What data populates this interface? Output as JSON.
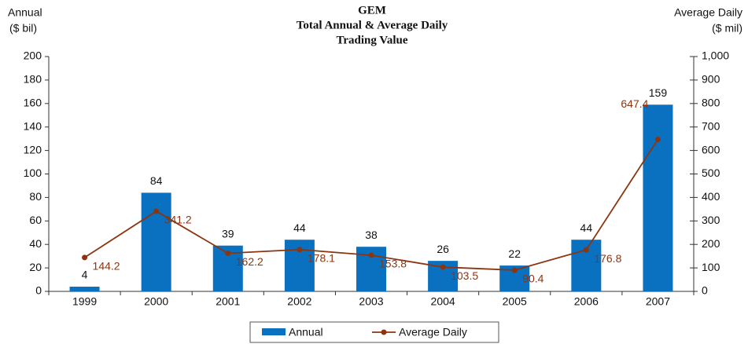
{
  "chart_data": {
    "type": "bar-line",
    "title": [
      "GEM",
      "Total Annual & Average Daily",
      "Trading Value"
    ],
    "y_label": [
      "Annual",
      "($ bil)"
    ],
    "y2_label": [
      "Average Daily",
      "($ mil)"
    ],
    "categories": [
      "1999",
      "2000",
      "2001",
      "2002",
      "2003",
      "2004",
      "2005",
      "2006",
      "2007"
    ],
    "series": [
      {
        "name": "Annual",
        "type": "bar",
        "color": "#0a70c0",
        "values": [
          4,
          84,
          39,
          44,
          38,
          26,
          22,
          44,
          159
        ]
      },
      {
        "name": "Average Daily",
        "type": "line",
        "axis": "y2",
        "color": "#8b3510",
        "values": [
          144.2,
          341.2,
          162.2,
          178.1,
          153.8,
          103.5,
          90.4,
          176.8,
          647.4
        ]
      }
    ],
    "ylim": [
      0,
      200
    ],
    "yticks": [
      0,
      20,
      40,
      60,
      80,
      100,
      120,
      140,
      160,
      180,
      200
    ],
    "y2lim": [
      0,
      1000
    ],
    "y2ticks": [
      0,
      100,
      200,
      300,
      400,
      500,
      600,
      700,
      800,
      900,
      {
        "value": 1000,
        "label": "1,000"
      }
    ],
    "legend": "bottom"
  }
}
